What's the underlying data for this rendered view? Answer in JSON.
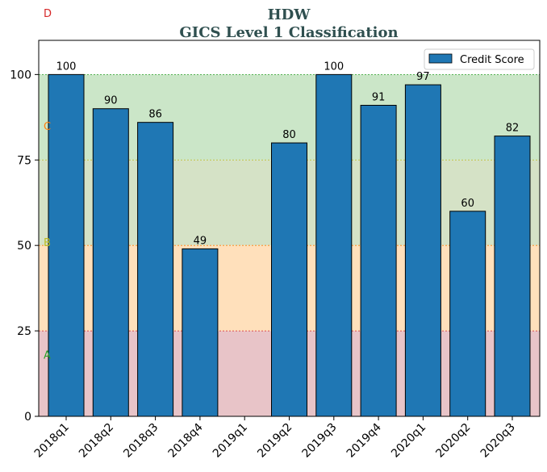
{
  "chart_data": {
    "type": "bar",
    "title": "HDW",
    "subtitle": "GICS Level 1 Classification",
    "categories": [
      "2018q1",
      "2018q2",
      "2018q3",
      "2018q4",
      "2019q1",
      "2019q2",
      "2019q3",
      "2019q4",
      "2020q1",
      "2020q2",
      "2020q3"
    ],
    "series": [
      {
        "name": "Credit Score",
        "values": [
          100,
          90,
          86,
          49,
          null,
          80,
          100,
          91,
          97,
          60,
          82
        ],
        "color": "#1f77b4"
      }
    ],
    "data_labels": [
      "100",
      "90",
      "86",
      "49",
      "",
      "80",
      "100",
      "91",
      "97",
      "60",
      "82"
    ],
    "ylim": [
      0,
      110
    ],
    "yticks": [
      0,
      25,
      50,
      75,
      100
    ],
    "xlabel": "",
    "ylabel": "",
    "legend": {
      "position": "top-right",
      "entries": [
        "Credit Score"
      ]
    },
    "zones": [
      {
        "label": "A",
        "from": 0,
        "to": 25,
        "fill": "#e8c4c8",
        "label_color": "#2ca02c",
        "label_value": 18,
        "line_color": "#d62728"
      },
      {
        "label": "B",
        "from": 25,
        "to": 50,
        "fill": "#ffe0bb",
        "label_color": "#bcbd22",
        "label_value": 51,
        "line_color": "#ff7f0e"
      },
      {
        "label": "C",
        "from": 50,
        "to": 75,
        "fill": "#d5e2c6",
        "label_color": "#ff7f0e",
        "label_value": 85,
        "line_color": "#bcbd22"
      },
      {
        "label": "D",
        "from": 75,
        "to": 100,
        "fill": "#cbe6c8",
        "label_color": "#d62728",
        "label_value": 118,
        "line_color": "#2ca02c"
      }
    ]
  }
}
